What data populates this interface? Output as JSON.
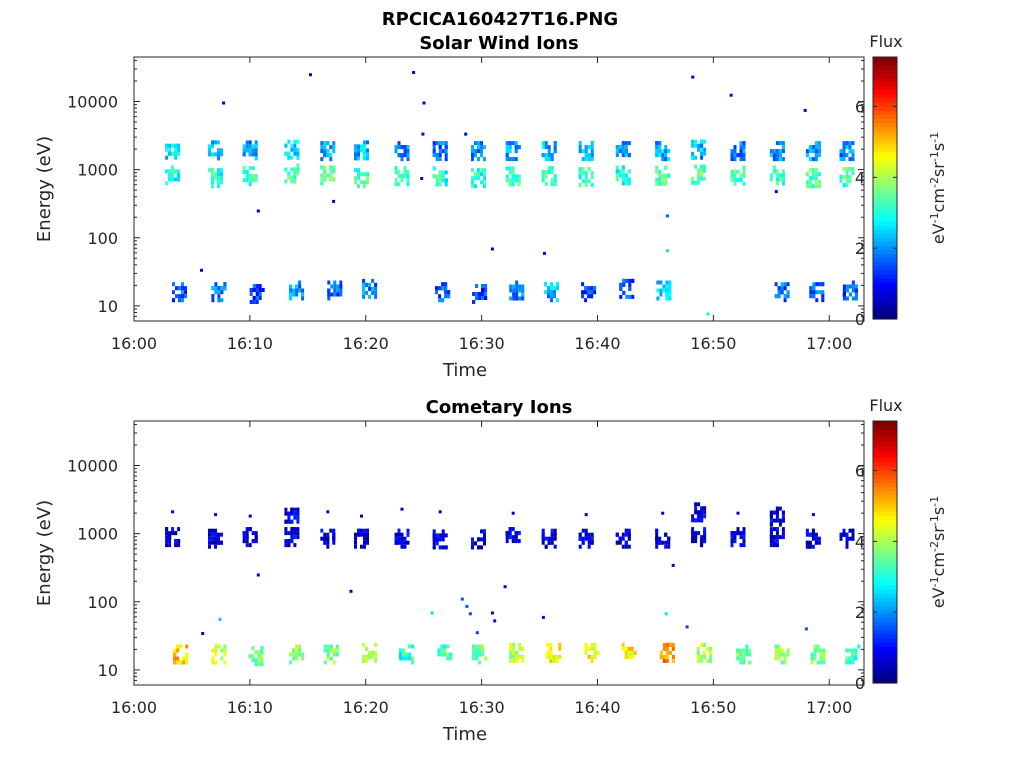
{
  "figure_title": "RPCICA160427T16.PNG",
  "chart_data": [
    {
      "type": "heatmap",
      "title": "Solar Wind Ions",
      "xlabel": "Time",
      "ylabel": "Energy (eV)",
      "x_ticks": [
        "16:00",
        "16:10",
        "16:20",
        "16:30",
        "16:40",
        "16:50",
        "17:00"
      ],
      "x_range_minutes": [
        0,
        63
      ],
      "y_scale": "log",
      "y_ticks": [
        "10",
        "100",
        "1000",
        "10000"
      ],
      "y_range": [
        6,
        45000
      ],
      "colorbar": {
        "title": "Flux",
        "label": "eV-1cm-2sr-1s-1",
        "ticks": [
          "0",
          "2",
          "4",
          "6"
        ],
        "range": [
          0,
          7.4
        ],
        "colormap": "jet"
      },
      "grid": false,
      "clusters": [
        {
          "t": 3.2,
          "e": 880,
          "f": 3.0
        },
        {
          "t": 3.2,
          "e": 2100,
          "f": 2.5
        },
        {
          "t": 6.9,
          "e": 800,
          "f": 3.0
        },
        {
          "t": 6.9,
          "e": 2050,
          "f": 2.3
        },
        {
          "t": 9.9,
          "e": 860,
          "f": 3.2
        },
        {
          "t": 9.9,
          "e": 2050,
          "f": 2.0
        },
        {
          "t": 13.5,
          "e": 940,
          "f": 3.3
        },
        {
          "t": 13.5,
          "e": 2100,
          "f": 2.4
        },
        {
          "t": 16.6,
          "e": 880,
          "f": 3.4
        },
        {
          "t": 16.6,
          "e": 2000,
          "f": 2.2
        },
        {
          "t": 19.5,
          "e": 800,
          "f": 3.2
        },
        {
          "t": 19.5,
          "e": 2050,
          "f": 2.2
        },
        {
          "t": 23.0,
          "e": 860,
          "f": 3.3
        },
        {
          "t": 23.0,
          "e": 2000,
          "f": 1.8
        },
        {
          "t": 26.3,
          "e": 850,
          "f": 3.0
        },
        {
          "t": 26.3,
          "e": 2000,
          "f": 1.7
        },
        {
          "t": 29.6,
          "e": 800,
          "f": 3.0
        },
        {
          "t": 29.6,
          "e": 2000,
          "f": 1.9
        },
        {
          "t": 32.6,
          "e": 850,
          "f": 3.1
        },
        {
          "t": 32.6,
          "e": 2000,
          "f": 2.1
        },
        {
          "t": 35.7,
          "e": 860,
          "f": 3.3
        },
        {
          "t": 35.7,
          "e": 2000,
          "f": 2.2
        },
        {
          "t": 38.9,
          "e": 830,
          "f": 3.2
        },
        {
          "t": 38.9,
          "e": 2000,
          "f": 2.1
        },
        {
          "t": 42.1,
          "e": 880,
          "f": 3.0
        },
        {
          "t": 42.1,
          "e": 2000,
          "f": 2.0
        },
        {
          "t": 45.5,
          "e": 870,
          "f": 3.4
        },
        {
          "t": 45.5,
          "e": 2000,
          "f": 2.1
        },
        {
          "t": 48.6,
          "e": 900,
          "f": 3.5
        },
        {
          "t": 48.6,
          "e": 2100,
          "f": 2.2
        },
        {
          "t": 52.0,
          "e": 870,
          "f": 3.2
        },
        {
          "t": 52.0,
          "e": 2000,
          "f": 1.8
        },
        {
          "t": 55.4,
          "e": 880,
          "f": 3.2
        },
        {
          "t": 55.4,
          "e": 2000,
          "f": 2.0
        },
        {
          "t": 58.5,
          "e": 800,
          "f": 3.4
        },
        {
          "t": 58.5,
          "e": 2000,
          "f": 2.0
        },
        {
          "t": 61.4,
          "e": 830,
          "f": 3.3
        },
        {
          "t": 61.4,
          "e": 2000,
          "f": 1.9
        },
        {
          "t": 3.8,
          "e": 17,
          "f": 1.6
        },
        {
          "t": 7.2,
          "e": 17,
          "f": 1.8
        },
        {
          "t": 10.5,
          "e": 16,
          "f": 1.4
        },
        {
          "t": 13.9,
          "e": 18,
          "f": 2.0
        },
        {
          "t": 17.2,
          "e": 18,
          "f": 1.6
        },
        {
          "t": 20.2,
          "e": 19,
          "f": 1.8
        },
        {
          "t": 26.5,
          "e": 17,
          "f": 1.6
        },
        {
          "t": 29.7,
          "e": 16,
          "f": 1.4
        },
        {
          "t": 32.9,
          "e": 18,
          "f": 1.8
        },
        {
          "t": 35.9,
          "e": 17,
          "f": 2.2
        },
        {
          "t": 39.1,
          "e": 17,
          "f": 1.5
        },
        {
          "t": 42.4,
          "e": 19,
          "f": 1.5
        },
        {
          "t": 45.6,
          "e": 18,
          "f": 2.4
        },
        {
          "t": 55.8,
          "e": 17,
          "f": 1.7
        },
        {
          "t": 58.8,
          "e": 17,
          "f": 1.6
        },
        {
          "t": 61.7,
          "e": 18,
          "f": 1.5
        }
      ],
      "scatter": [
        {
          "t": 15.1,
          "e": 26000,
          "f": 0.6
        },
        {
          "t": 24.0,
          "e": 28000,
          "f": 0.6
        },
        {
          "t": 7.6,
          "e": 10000,
          "f": 0.6
        },
        {
          "t": 24.9,
          "e": 10000,
          "f": 0.6
        },
        {
          "t": 48.1,
          "e": 24000,
          "f": 0.6
        },
        {
          "t": 51.4,
          "e": 13000,
          "f": 0.6
        },
        {
          "t": 57.8,
          "e": 7800,
          "f": 0.6
        },
        {
          "t": 10.6,
          "e": 260,
          "f": 0.6
        },
        {
          "t": 17.1,
          "e": 360,
          "f": 0.6
        },
        {
          "t": 30.8,
          "e": 72,
          "f": 0.6
        },
        {
          "t": 35.3,
          "e": 62,
          "f": 0.6
        },
        {
          "t": 45.9,
          "e": 220,
          "f": 1.6
        },
        {
          "t": 45.9,
          "e": 68,
          "f": 2.6
        },
        {
          "t": 49.4,
          "e": 8,
          "f": 2.8
        },
        {
          "t": 24.8,
          "e": 3500,
          "f": 0.6
        },
        {
          "t": 28.5,
          "e": 3500,
          "f": 0.6
        },
        {
          "t": 5.7,
          "e": 35,
          "f": 0.8
        },
        {
          "t": 24.7,
          "e": 780,
          "f": 0.6
        },
        {
          "t": 55.3,
          "e": 500,
          "f": 0.8
        }
      ]
    },
    {
      "type": "heatmap",
      "title": "Cometary Ions",
      "xlabel": "Time",
      "ylabel": "Energy (eV)",
      "x_ticks": [
        "16:00",
        "16:10",
        "16:20",
        "16:30",
        "16:40",
        "16:50",
        "17:00"
      ],
      "x_range_minutes": [
        0,
        63
      ],
      "y_scale": "log",
      "y_ticks": [
        "10",
        "100",
        "1000",
        "10000"
      ],
      "y_range": [
        6,
        45000
      ],
      "colorbar": {
        "title": "Flux",
        "label": "eV-1cm-2sr-1s-1",
        "ticks": [
          "0",
          "2",
          "4",
          "6"
        ],
        "range": [
          0,
          7.4
        ],
        "colormap": "jet"
      },
      "grid": false,
      "clusters": [
        {
          "t": 3.2,
          "e": 950,
          "f": 0.6
        },
        {
          "t": 6.9,
          "e": 900,
          "f": 0.6
        },
        {
          "t": 9.9,
          "e": 950,
          "f": 0.6
        },
        {
          "t": 13.5,
          "e": 950,
          "f": 0.6
        },
        {
          "t": 16.6,
          "e": 900,
          "f": 0.6
        },
        {
          "t": 19.5,
          "e": 900,
          "f": 0.6
        },
        {
          "t": 23.0,
          "e": 900,
          "f": 0.6
        },
        {
          "t": 26.3,
          "e": 880,
          "f": 0.6
        },
        {
          "t": 29.6,
          "e": 880,
          "f": 0.6
        },
        {
          "t": 32.6,
          "e": 950,
          "f": 0.6
        },
        {
          "t": 35.7,
          "e": 900,
          "f": 0.6
        },
        {
          "t": 38.9,
          "e": 900,
          "f": 0.6
        },
        {
          "t": 42.1,
          "e": 900,
          "f": 0.6
        },
        {
          "t": 45.5,
          "e": 900,
          "f": 0.6
        },
        {
          "t": 48.6,
          "e": 950,
          "f": 0.6
        },
        {
          "t": 52.0,
          "e": 950,
          "f": 0.6
        },
        {
          "t": 55.4,
          "e": 950,
          "f": 0.6
        },
        {
          "t": 58.5,
          "e": 900,
          "f": 0.6
        },
        {
          "t": 61.4,
          "e": 900,
          "f": 0.6
        },
        {
          "t": 13.5,
          "e": 2100,
          "f": 0.6
        },
        {
          "t": 48.6,
          "e": 2200,
          "f": 0.6
        },
        {
          "t": 55.4,
          "e": 1900,
          "f": 0.6
        },
        {
          "t": 3.9,
          "e": 18,
          "f": 5.0
        },
        {
          "t": 7.2,
          "e": 18,
          "f": 4.3
        },
        {
          "t": 10.4,
          "e": 17,
          "f": 3.6
        },
        {
          "t": 13.9,
          "e": 18,
          "f": 3.9
        },
        {
          "t": 16.9,
          "e": 18,
          "f": 3.7
        },
        {
          "t": 20.2,
          "e": 19,
          "f": 3.9
        },
        {
          "t": 23.4,
          "e": 18,
          "f": 3.1
        },
        {
          "t": 26.7,
          "e": 18,
          "f": 3.2
        },
        {
          "t": 29.7,
          "e": 18,
          "f": 3.6
        },
        {
          "t": 32.9,
          "e": 19,
          "f": 4.2
        },
        {
          "t": 36.1,
          "e": 19,
          "f": 4.6
        },
        {
          "t": 39.4,
          "e": 19,
          "f": 4.6
        },
        {
          "t": 42.6,
          "e": 19,
          "f": 4.8
        },
        {
          "t": 45.9,
          "e": 19,
          "f": 5.4
        },
        {
          "t": 49.1,
          "e": 19,
          "f": 4.0
        },
        {
          "t": 52.5,
          "e": 18,
          "f": 3.6
        },
        {
          "t": 55.8,
          "e": 18,
          "f": 3.8
        },
        {
          "t": 58.9,
          "e": 18,
          "f": 3.7
        },
        {
          "t": 61.9,
          "e": 18,
          "f": 3.2
        }
      ],
      "scatter": [
        {
          "t": 3.2,
          "e": 2200,
          "f": 0.6
        },
        {
          "t": 6.9,
          "e": 2000,
          "f": 0.6
        },
        {
          "t": 9.9,
          "e": 1900,
          "f": 0.6
        },
        {
          "t": 16.6,
          "e": 2200,
          "f": 0.6
        },
        {
          "t": 19.5,
          "e": 1900,
          "f": 0.6
        },
        {
          "t": 23.0,
          "e": 2400,
          "f": 0.6
        },
        {
          "t": 26.3,
          "e": 2200,
          "f": 0.6
        },
        {
          "t": 32.6,
          "e": 2100,
          "f": 0.6
        },
        {
          "t": 38.9,
          "e": 2000,
          "f": 0.6
        },
        {
          "t": 45.5,
          "e": 2100,
          "f": 0.6
        },
        {
          "t": 52.0,
          "e": 2100,
          "f": 0.6
        },
        {
          "t": 58.5,
          "e": 2000,
          "f": 0.6
        },
        {
          "t": 10.6,
          "e": 260,
          "f": 0.6
        },
        {
          "t": 18.6,
          "e": 150,
          "f": 0.6
        },
        {
          "t": 31.9,
          "e": 175,
          "f": 0.6
        },
        {
          "t": 46.4,
          "e": 360,
          "f": 0.6
        },
        {
          "t": 28.2,
          "e": 115,
          "f": 1.5
        },
        {
          "t": 28.6,
          "e": 90,
          "f": 1.5
        },
        {
          "t": 28.9,
          "e": 70,
          "f": 1.5
        },
        {
          "t": 30.8,
          "e": 72,
          "f": 0.6
        },
        {
          "t": 31.0,
          "e": 55,
          "f": 1.0
        },
        {
          "t": 25.6,
          "e": 72,
          "f": 2.5
        },
        {
          "t": 7.3,
          "e": 58,
          "f": 2.4
        },
        {
          "t": 5.8,
          "e": 36,
          "f": 0.6
        },
        {
          "t": 29.5,
          "e": 37,
          "f": 1.4
        },
        {
          "t": 35.2,
          "e": 62,
          "f": 1.0
        },
        {
          "t": 45.8,
          "e": 70,
          "f": 2.6
        },
        {
          "t": 47.6,
          "e": 45,
          "f": 1.4
        },
        {
          "t": 57.9,
          "e": 42,
          "f": 1.5
        }
      ]
    }
  ]
}
